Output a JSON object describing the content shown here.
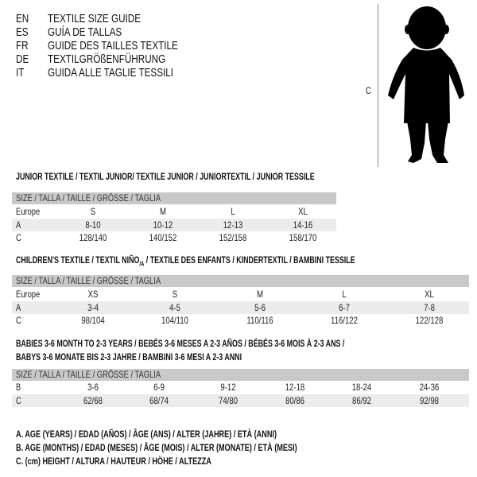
{
  "languages": [
    {
      "code": "EN",
      "title": "TEXTILE SIZE GUIDE"
    },
    {
      "code": "ES",
      "title": "GUÍA DE TALLAS"
    },
    {
      "code": "FR",
      "title": "GUIDE DES TAILLES TEXTILE"
    },
    {
      "code": "DE",
      "title": "TEXTILGRÖßENFÜHRUNG"
    },
    {
      "code": "IT",
      "title": "GUIDA ALLE TAGLIE TESSILI"
    }
  ],
  "figure": {
    "height_label": "C"
  },
  "junior": {
    "title": "JUNIOR TEXTILE / TEXTIL JUNIOR/ TEXTILE JUNIOR / JUNIORTEXTIL / JUNIOR TESSILE",
    "header": "SIZE / TALLA / TAILLE / GRÖSSE / TAGLIA",
    "rows": [
      {
        "label": "Europe",
        "values": [
          "S",
          "M",
          "L",
          "XL"
        ]
      },
      {
        "label": "A",
        "values": [
          "8-10",
          "10-12",
          "12-13",
          "14-16"
        ]
      },
      {
        "label": "C",
        "values": [
          "128/140",
          "140/152",
          "152/158",
          "158/170"
        ]
      }
    ]
  },
  "children": {
    "title_pre": "CHILDREN'S TEXTILE / TEXTIL NIÑO",
    "title_sub": "/A",
    "title_post": " / TEXTILE DES ENFANTS / KINDERTEXTIL / BAMBINI TESSILE",
    "header": "SIZE / TALLA / TAILLE / GRÖSSE / TAGLIA",
    "rows": [
      {
        "label": "Europe",
        "values": [
          "XS",
          "S",
          "M",
          "L",
          "XL"
        ]
      },
      {
        "label": "A",
        "values": [
          "3-4",
          "4-5",
          "5-6",
          "6-7",
          "7-8"
        ]
      },
      {
        "label": "C",
        "values": [
          "98/104",
          "104/110",
          "110/116",
          "116/122",
          "122/128"
        ]
      }
    ]
  },
  "babies": {
    "title_line1": "BABIES 3-6 MONTH TO 2-3 YEARS / BEBÉS 3-6 MESES A 2-3 AÑOS / BÉBÉS 3-6 MOIS À 2-3 ANS /",
    "title_line2": "BABYS 3-6 MONATE BIS 2-3 JAHRE / BAMBINI 3-6 MESI A 2-3 ANNI",
    "header": "SIZE / TALLA / TAILLE / GRÖSSE / TAGLIA",
    "rows": [
      {
        "label": "B",
        "values": [
          "3-6",
          "6-9",
          "9-12",
          "12-18",
          "18-24",
          "24-36"
        ]
      },
      {
        "label": "C",
        "values": [
          "62/68",
          "68/74",
          "74/80",
          "80/86",
          "86/92",
          "92/98"
        ]
      }
    ]
  },
  "legend": [
    "A. AGE (YEARS) / EDAD (AÑOS) / ÂGE (ANS) / ALTER (JAHRE) / ETÀ (ANNI)",
    "B. AGE (MONTHS) / EDAD (MESES) / ÂGE (MOIS) / ALTER (MONATE) / ETÀ (MESI)",
    "C. (cm) HEIGHT / ALTURA / HAUTEUR / HÖHE / ALTEZZA"
  ],
  "colors": {
    "header_bg": "#c9c9c9",
    "shade_bg": "#ececec"
  }
}
